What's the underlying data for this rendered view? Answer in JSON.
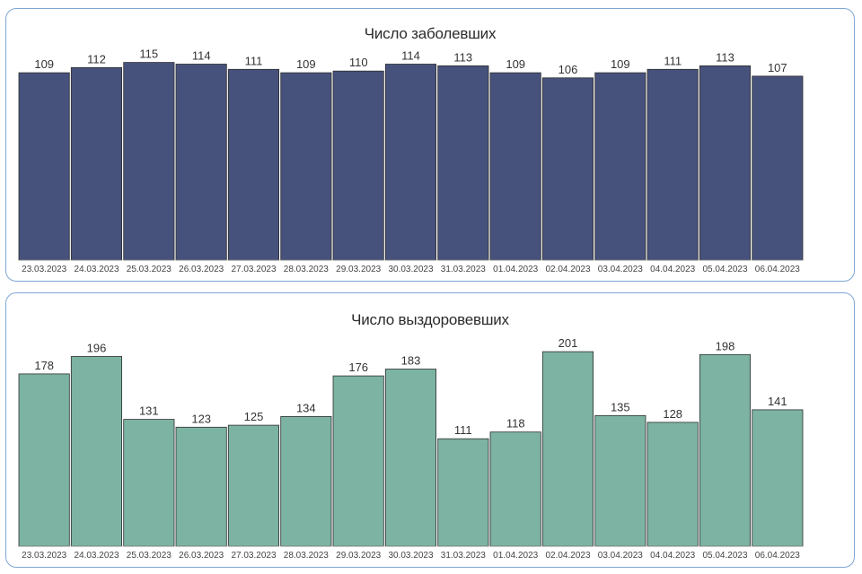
{
  "chart_data": [
    {
      "type": "bar",
      "title": "Число заболевших",
      "categories": [
        "23.03.2023",
        "24.03.2023",
        "25.03.2023",
        "26.03.2023",
        "27.03.2023",
        "28.03.2023",
        "29.03.2023",
        "30.03.2023",
        "31.03.2023",
        "01.04.2023",
        "02.04.2023",
        "03.04.2023",
        "04.04.2023",
        "05.04.2023",
        "06.04.2023"
      ],
      "values": [
        109,
        112,
        115,
        114,
        111,
        109,
        110,
        114,
        113,
        109,
        106,
        109,
        111,
        113,
        107
      ],
      "color": "#47527c",
      "ylim": [
        0,
        120
      ],
      "data_labels": true,
      "grid": false,
      "legend": "none"
    },
    {
      "type": "bar",
      "title": "Число выздоровевших",
      "categories": [
        "23.03.2023",
        "24.03.2023",
        "25.03.2023",
        "26.03.2023",
        "27.03.2023",
        "28.03.2023",
        "29.03.2023",
        "30.03.2023",
        "31.03.2023",
        "01.04.2023",
        "02.04.2023",
        "03.04.2023",
        "04.04.2023",
        "05.04.2023",
        "06.04.2023"
      ],
      "values": [
        178,
        196,
        131,
        123,
        125,
        134,
        176,
        183,
        111,
        118,
        201,
        135,
        128,
        198,
        141
      ],
      "color": "#7cb3a2",
      "ylim": [
        0,
        215
      ],
      "data_labels": true,
      "grid": false,
      "legend": "none"
    }
  ]
}
